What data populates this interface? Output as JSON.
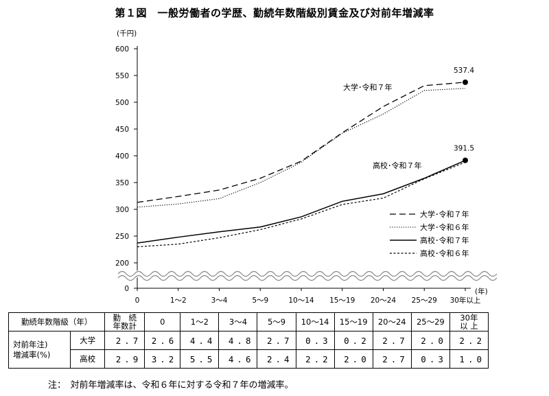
{
  "title": "第１図　一般労働者の学歴、勤続年数階級別賃金及び対前年増減率",
  "chart_data": {
    "type": "line",
    "unit_label": "(千円)",
    "x_unit_label": "(年)",
    "categories": [
      "0",
      "1～2",
      "3～4",
      "5～9",
      "10～14",
      "15～19",
      "20～24",
      "25～29",
      "30年以上"
    ],
    "y_ticks": [
      0,
      200,
      250,
      300,
      350,
      400,
      450,
      500,
      550,
      600
    ],
    "ylim": [
      200,
      600
    ],
    "axis_break": true,
    "series": [
      {
        "name": "大学･令和７年",
        "style": "dashed",
        "values": [
          313,
          324,
          336,
          358,
          390,
          443,
          492,
          531,
          537.4
        ]
      },
      {
        "name": "大学･令和６年",
        "style": "dotted",
        "values": [
          304,
          310,
          320,
          350,
          388,
          442,
          478,
          522,
          526
        ]
      },
      {
        "name": "高校･令和７年",
        "style": "solid",
        "values": [
          237,
          248,
          258,
          267,
          286,
          315,
          329,
          358,
          391.5
        ]
      },
      {
        "name": "高校･令和６年",
        "style": "shortdash",
        "values": [
          230,
          235,
          247,
          262,
          282,
          309,
          321,
          357,
          388
        ]
      }
    ],
    "annotations": {
      "univ_label": "大学･令和７年",
      "high_label": "高校･令和７年",
      "univ_end_value": "537.4",
      "high_end_value": "391.5"
    }
  },
  "table": {
    "header_label": "勤続年数階級（年）",
    "header_total": "勤　続\n年数計",
    "columns": [
      "0",
      "1～2",
      "3～4",
      "5～9",
      "10～14",
      "15～19",
      "20～24",
      "25～29",
      "30年\n以 上"
    ],
    "row_label": "対前年注)\n増減率(%)",
    "rows": [
      {
        "name": "大学",
        "values": [
          "2.7",
          "2.6",
          "4.4",
          "4.8",
          "2.7",
          "0.3",
          "0.2",
          "2.7",
          "2.0",
          "2.2"
        ]
      },
      {
        "name": "高校",
        "values": [
          "2.9",
          "3.2",
          "5.5",
          "4.6",
          "2.4",
          "2.2",
          "2.0",
          "2.7",
          "0.3",
          "1.0"
        ]
      }
    ]
  },
  "note": "注：　対前年増減率は、令和６年に対する令和７年の増減率。"
}
